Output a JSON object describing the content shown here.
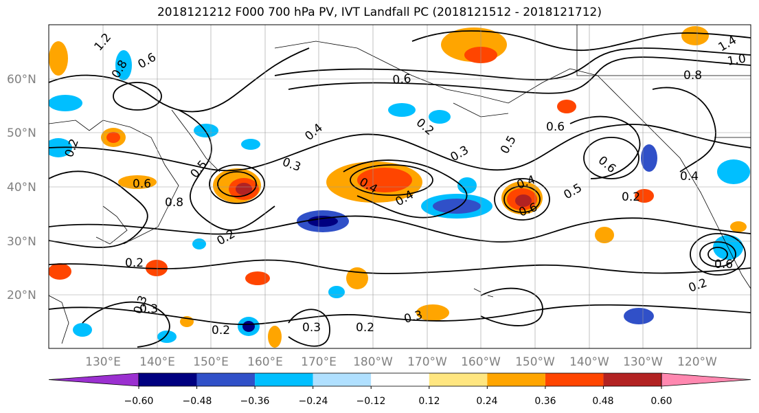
{
  "title": "2018121212 F000 700 hPa PV, IVT Landfall PC (2018121512 - 2018121712)",
  "lat_labels": [
    "60°N",
    "50°N",
    "40°N",
    "30°N",
    "20°N"
  ],
  "lon_labels": [
    "130°E",
    "140°E",
    "150°E",
    "160°E",
    "170°E",
    "180°W",
    "170°W",
    "160°W",
    "150°W",
    "140°W",
    "130°W",
    "120°W"
  ],
  "colorbar": {
    "ticks": [
      "−0.60",
      "−0.48",
      "−0.36",
      "−0.24",
      "−0.12",
      "0.12",
      "0.24",
      "0.36",
      "0.48",
      "0.60"
    ],
    "colors": [
      "#9b30d0",
      "#000080",
      "#3050c8",
      "#00bfff",
      "#b0e0ff",
      "#ffffff",
      "#ffe680",
      "#ffa500",
      "#ff4500",
      "#b22222",
      "#ff88b0"
    ]
  },
  "contour_labels": [
    "1.2",
    "0.8",
    "0.6",
    "0.2",
    "0.3",
    "0.4",
    "0.5",
    "0.6",
    "0.2",
    "0.3",
    "0.4",
    "0.2",
    "0.3",
    "0.2",
    "0.3",
    "0.4",
    "0.5",
    "0.6",
    "0.2",
    "0.4",
    "1.0",
    "1.4",
    "0.8",
    "0.6",
    "0.5",
    "0.4",
    "0.2",
    "0.2",
    "0.6",
    "0.8",
    "0.3",
    "0.6",
    "0.6",
    "0.2",
    "0.3"
  ]
}
